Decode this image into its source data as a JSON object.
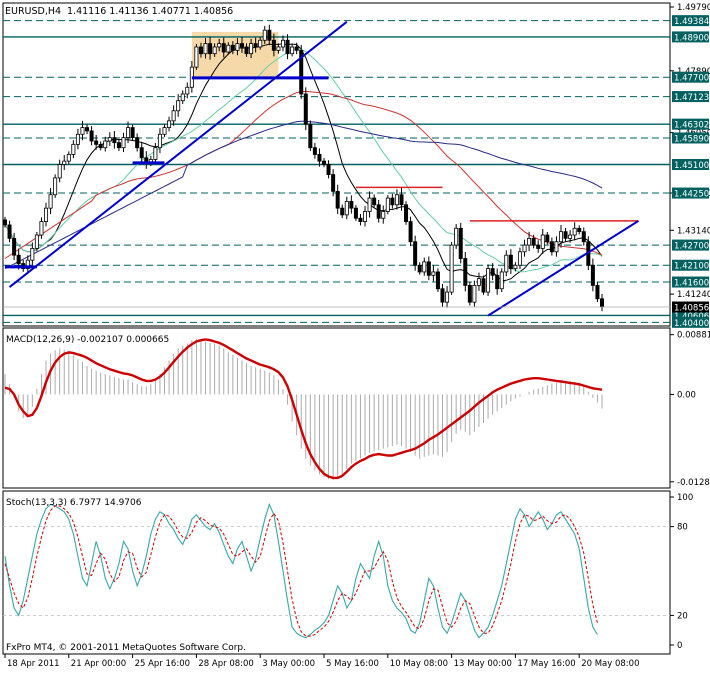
{
  "window": {
    "symbol_label": "EURUSD,H4",
    "ohlc_label": "1.41116 1.41136 1.40771 1.40856",
    "copyright": "FxPro MT4, © 2001-2011 MetaQuotes Software Corp."
  },
  "colors": {
    "candle": "#000000",
    "hline": "#006060",
    "trendline": "#0000cc",
    "ma_black": "#000000",
    "ma_green": "#66ccaa",
    "ma_red": "#cc3333",
    "ma_navy": "#2a2a8a",
    "resistance": "#dd2222",
    "consolidation_box": "#f5d9a8",
    "macd_signal": "#cc0000",
    "macd_hist": "#aaaaaa",
    "stoch_main": "#3aa6a6",
    "stoch_signal": "#cc0000",
    "price_tag_bg": "#000000",
    "price_tag_fg": "#ffffff"
  },
  "chart_data": [
    {
      "type": "candlestick",
      "panel": "price",
      "ylim": [
        1.4035,
        1.4985
      ],
      "y_tick_labels": [
        "1.49790",
        "1.47890",
        "1.46050",
        "1.44250",
        "1.43140",
        "1.41240"
      ],
      "x_tick_labels": [
        "18 Apr 2011",
        "21 Apr 00:00",
        "25 Apr 16:00",
        "28 Apr 08:00",
        "3 May 00:00",
        "5 May 16:00",
        "10 May 08:00",
        "13 May 00:00",
        "17 May 16:00",
        "20 May 08:00"
      ],
      "x_tick_bars": [
        0,
        14,
        28,
        42,
        56,
        70,
        84,
        98,
        112,
        126
      ],
      "n_bars": 132,
      "levels": [
        {
          "value": 1.49384,
          "label": "1.49384",
          "style": "dashed"
        },
        {
          "value": 1.489,
          "label": "1.48900",
          "style": "solid"
        },
        {
          "value": 1.477,
          "label": "1.47700",
          "style": "dashed"
        },
        {
          "value": 1.47123,
          "label": "1.47123",
          "style": "dashed"
        },
        {
          "value": 1.46302,
          "label": "1.46302",
          "style": "solid"
        },
        {
          "value": 1.4589,
          "label": "1.45890",
          "style": "dashed"
        },
        {
          "value": 1.451,
          "label": "1.45100",
          "style": "solid"
        },
        {
          "value": 1.4425,
          "label": "1.44250",
          "style": "dashed"
        },
        {
          "value": 1.427,
          "label": "1.42700",
          "style": "dashed"
        },
        {
          "value": 1.421,
          "label": "1.42100",
          "style": "dashed"
        },
        {
          "value": 1.416,
          "label": "1.41600",
          "style": "dashed"
        },
        {
          "value": 1.40606,
          "label": "1.40606",
          "style": "solid"
        },
        {
          "value": 1.404,
          "label": "1.40400",
          "style": "dashed"
        }
      ],
      "current_price": {
        "value": 1.40856,
        "label": "1.40856"
      },
      "closes": [
        1.433,
        1.429,
        1.424,
        1.4215,
        1.42,
        1.4225,
        1.426,
        1.43,
        1.434,
        1.438,
        1.442,
        1.447,
        1.451,
        1.452,
        1.454,
        1.457,
        1.46,
        1.462,
        1.461,
        1.458,
        1.457,
        1.456,
        1.458,
        1.459,
        1.4575,
        1.456,
        1.459,
        1.462,
        1.459,
        1.456,
        1.453,
        1.4515,
        1.4525,
        1.456,
        1.46,
        1.462,
        1.464,
        1.467,
        1.47,
        1.472,
        1.474,
        1.48,
        1.486,
        1.484,
        1.487,
        1.484,
        1.486,
        1.487,
        1.4845,
        1.4865,
        1.485,
        1.487,
        1.486,
        1.484,
        1.487,
        1.486,
        1.488,
        1.491,
        1.488,
        1.485,
        1.486,
        1.488,
        1.484,
        1.486,
        1.485,
        1.472,
        1.463,
        1.456,
        1.454,
        1.452,
        1.451,
        1.448,
        1.443,
        1.438,
        1.436,
        1.44,
        1.438,
        1.435,
        1.434,
        1.437,
        1.441,
        1.439,
        1.435,
        1.437,
        1.441,
        1.439,
        1.442,
        1.439,
        1.434,
        1.428,
        1.421,
        1.419,
        1.422,
        1.418,
        1.419,
        1.414,
        1.41,
        1.413,
        1.427,
        1.432,
        1.423,
        1.415,
        1.41,
        1.415,
        1.417,
        1.413,
        1.42,
        1.418,
        1.414,
        1.419,
        1.424,
        1.42,
        1.421,
        1.425,
        1.427,
        1.429,
        1.427,
        1.426,
        1.43,
        1.428,
        1.425,
        1.428,
        1.431,
        1.429,
        1.43,
        1.432,
        1.431,
        1.428,
        1.421,
        1.415,
        1.411,
        1.4086
      ]
    },
    {
      "type": "line",
      "panel": "macd",
      "title": "MACD(12,26,9) -0.002107 0.000665",
      "ylim": [
        -0.0135,
        0.0095
      ],
      "y_tick_labels": [
        "0.00881",
        "0.00",
        "-0.01288"
      ],
      "series": [
        {
          "name": "MACD",
          "style": "histogram",
          "values": [
            0.003,
            0.0015,
            -0.0005,
            -0.0025,
            -0.0035,
            -0.0032,
            -0.0018,
            0.0008,
            0.003,
            0.005,
            0.006,
            0.0065,
            0.0068,
            0.0066,
            0.0063,
            0.0058,
            0.0052,
            0.0048,
            0.0042,
            0.0038,
            0.0035,
            0.0032,
            0.003,
            0.0028,
            0.0026,
            0.0024,
            0.0022,
            0.0022,
            0.0018,
            0.0015,
            0.0012,
            0.0012,
            0.0015,
            0.002,
            0.003,
            0.004,
            0.005,
            0.006,
            0.0068,
            0.0072,
            0.0075,
            0.008,
            0.0082,
            0.008,
            0.0078,
            0.0076,
            0.0075,
            0.0072,
            0.0068,
            0.0062,
            0.0058,
            0.0054,
            0.005,
            0.0046,
            0.0042,
            0.004,
            0.0038,
            0.0035,
            0.0032,
            0.0028,
            0.0022,
            0.0008,
            -0.0015,
            -0.004,
            -0.006,
            -0.008,
            -0.0095,
            -0.0105,
            -0.0112,
            -0.0118,
            -0.0122,
            -0.0125,
            -0.0126,
            -0.0124,
            -0.0118,
            -0.011,
            -0.0102,
            -0.0098,
            -0.0094,
            -0.009,
            -0.0086,
            -0.0084,
            -0.0082,
            -0.008,
            -0.0078,
            -0.0076,
            -0.0074,
            -0.0076,
            -0.008,
            -0.0085,
            -0.009,
            -0.0095,
            -0.0092,
            -0.009,
            -0.0088,
            -0.009,
            -0.0092,
            -0.0085,
            -0.007,
            -0.0058,
            -0.0052,
            -0.0055,
            -0.006,
            -0.0055,
            -0.0048,
            -0.0042,
            -0.0036,
            -0.003,
            -0.0025,
            -0.002,
            -0.0015,
            -0.001,
            -0.0006,
            -0.0003,
            0.0,
            0.0004,
            0.0007,
            0.0009,
            0.0011,
            0.0014,
            0.0016,
            0.0017,
            0.0018,
            0.0019,
            0.002,
            0.0019,
            0.0017,
            0.0012,
            0.0004,
            -0.0005,
            -0.0012,
            -0.0021
          ]
        },
        {
          "name": "Signal",
          "style": "line",
          "values": [
            0.001,
            0.0008,
            0.0,
            -0.0015,
            -0.0025,
            -0.0032,
            -0.003,
            -0.002,
            -0.0002,
            0.0018,
            0.0035,
            0.0047,
            0.0055,
            0.006,
            0.0062,
            0.0061,
            0.0059,
            0.0057,
            0.0054,
            0.005,
            0.0046,
            0.0043,
            0.004,
            0.0037,
            0.0035,
            0.0033,
            0.0031,
            0.003,
            0.0028,
            0.0025,
            0.0022,
            0.002,
            0.002,
            0.0022,
            0.0026,
            0.0032,
            0.004,
            0.0048,
            0.0056,
            0.0063,
            0.0069,
            0.0074,
            0.0078,
            0.008,
            0.0081,
            0.008,
            0.0078,
            0.0076,
            0.0073,
            0.0069,
            0.0065,
            0.0061,
            0.0057,
            0.0053,
            0.005,
            0.0047,
            0.0044,
            0.0042,
            0.004,
            0.0037,
            0.0033,
            0.0025,
            0.0012,
            -0.0008,
            -0.003,
            -0.0052,
            -0.0072,
            -0.0088,
            -0.01,
            -0.011,
            -0.0117,
            -0.0121,
            -0.0123,
            -0.0123,
            -0.012,
            -0.0114,
            -0.0107,
            -0.0102,
            -0.0098,
            -0.0095,
            -0.0091,
            -0.0089,
            -0.0088,
            -0.0089,
            -0.009,
            -0.009,
            -0.0088,
            -0.0086,
            -0.0084,
            -0.0082,
            -0.008,
            -0.0076,
            -0.0072,
            -0.0067,
            -0.0063,
            -0.0059,
            -0.0054,
            -0.0049,
            -0.0044,
            -0.0039,
            -0.0034,
            -0.0029,
            -0.0024,
            -0.0018,
            -0.0012,
            -0.0007,
            -0.0002,
            0.0003,
            0.0007,
            0.001,
            0.0013,
            0.0016,
            0.0018,
            0.002,
            0.0022,
            0.0023,
            0.0024,
            0.0024,
            0.0023,
            0.0022,
            0.0021,
            0.002,
            0.0019,
            0.0018,
            0.0017,
            0.0016,
            0.0015,
            0.0013,
            0.0011,
            0.0009,
            0.0008,
            0.0007
          ]
        }
      ]
    },
    {
      "type": "line",
      "panel": "stochastic",
      "title": "Stoch(13,3,3) 6.7977 14.9706",
      "ylim": [
        0,
        100
      ],
      "y_tick_labels": [
        "100",
        "80",
        "20",
        "0"
      ],
      "levels": [
        80,
        20
      ],
      "series": [
        {
          "name": "%K",
          "values": [
            60,
            40,
            25,
            20,
            30,
            45,
            60,
            75,
            85,
            92,
            95,
            94,
            92,
            90,
            85,
            75,
            60,
            45,
            40,
            55,
            70,
            60,
            45,
            38,
            45,
            55,
            70,
            65,
            50,
            40,
            48,
            60,
            75,
            85,
            90,
            88,
            82,
            78,
            72,
            68,
            75,
            85,
            88,
            84,
            80,
            78,
            82,
            76,
            68,
            60,
            55,
            65,
            70,
            60,
            50,
            58,
            72,
            85,
            95,
            88,
            70,
            50,
            30,
            12,
            8,
            6,
            5,
            7,
            10,
            12,
            15,
            20,
            30,
            40,
            35,
            25,
            30,
            45,
            55,
            50,
            45,
            60,
            70,
            60,
            40,
            30,
            25,
            22,
            18,
            10,
            8,
            15,
            30,
            45,
            40,
            25,
            12,
            8,
            15,
            25,
            35,
            30,
            20,
            10,
            5,
            8,
            12,
            20,
            30,
            40,
            55,
            70,
            85,
            92,
            88,
            80,
            85,
            90,
            85,
            78,
            82,
            88,
            90,
            85,
            80,
            75,
            65,
            45,
            25,
            12,
            7
          ]
        },
        {
          "name": "%D",
          "values": [
            55,
            45,
            35,
            28,
            25,
            32,
            45,
            60,
            73,
            84,
            91,
            94,
            94,
            92,
            89,
            83,
            73,
            60,
            48,
            47,
            55,
            62,
            58,
            48,
            43,
            46,
            57,
            63,
            62,
            52,
            46,
            49,
            61,
            73,
            83,
            88,
            87,
            83,
            77,
            73,
            72,
            76,
            83,
            86,
            84,
            81,
            80,
            79,
            75,
            68,
            61,
            60,
            63,
            65,
            60,
            56,
            60,
            72,
            84,
            89,
            84,
            69,
            50,
            31,
            17,
            9,
            6,
            6,
            7,
            10,
            12,
            16,
            22,
            30,
            35,
            33,
            30,
            35,
            43,
            50,
            50,
            52,
            58,
            63,
            57,
            43,
            32,
            26,
            22,
            17,
            12,
            11,
            18,
            30,
            38,
            37,
            26,
            15,
            12,
            16,
            25,
            30,
            28,
            20,
            12,
            8,
            8,
            13,
            21,
            30,
            42,
            55,
            70,
            82,
            88,
            87,
            84,
            85,
            87,
            84,
            82,
            83,
            87,
            88,
            85,
            80,
            73,
            62,
            45,
            27,
            15
          ]
        }
      ]
    }
  ]
}
